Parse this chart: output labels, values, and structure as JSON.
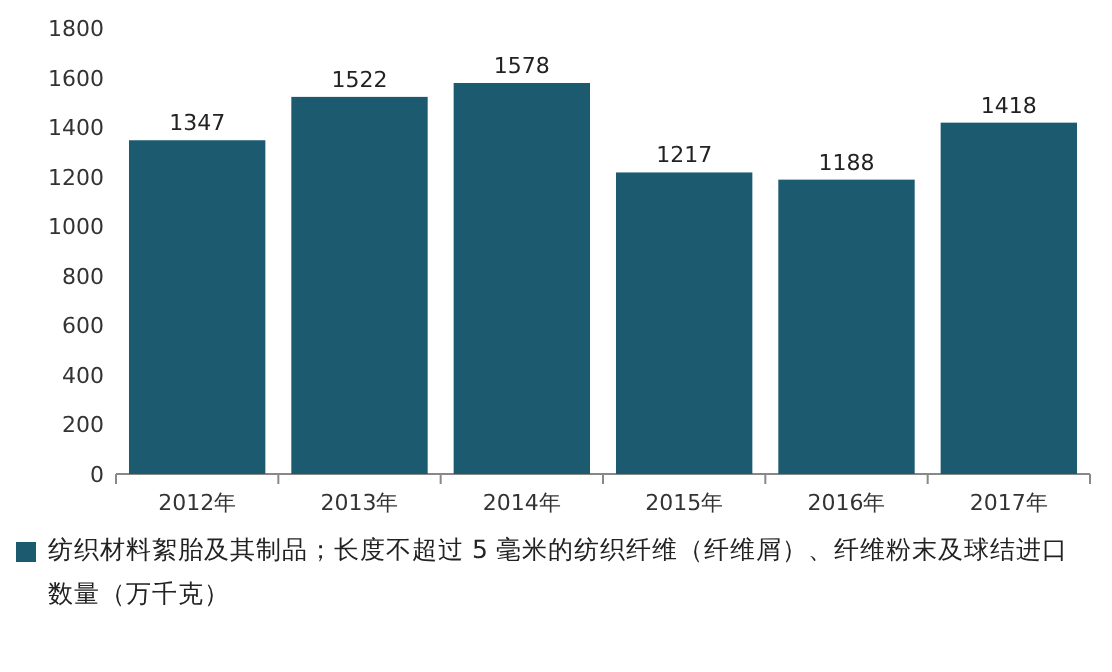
{
  "chart_data": {
    "type": "bar",
    "categories": [
      "2012年",
      "2013年",
      "2014年",
      "2015年",
      "2016年",
      "2017年"
    ],
    "series": [
      {
        "name": "纺织材料絮胎及其制品；长度不超过 5 毫米的纺织纤维（纤维屑）、纤维粉末及球结进口数量（万千克）",
        "color": "#1c5a70",
        "values": [
          1347,
          1522,
          1578,
          1217,
          1188,
          1418
        ]
      }
    ],
    "ylim": [
      0,
      1800
    ],
    "yticks": [
      0,
      200,
      400,
      600,
      800,
      1000,
      1200,
      1400,
      1600,
      1800
    ],
    "data_labels": true,
    "legend": "bottom"
  }
}
